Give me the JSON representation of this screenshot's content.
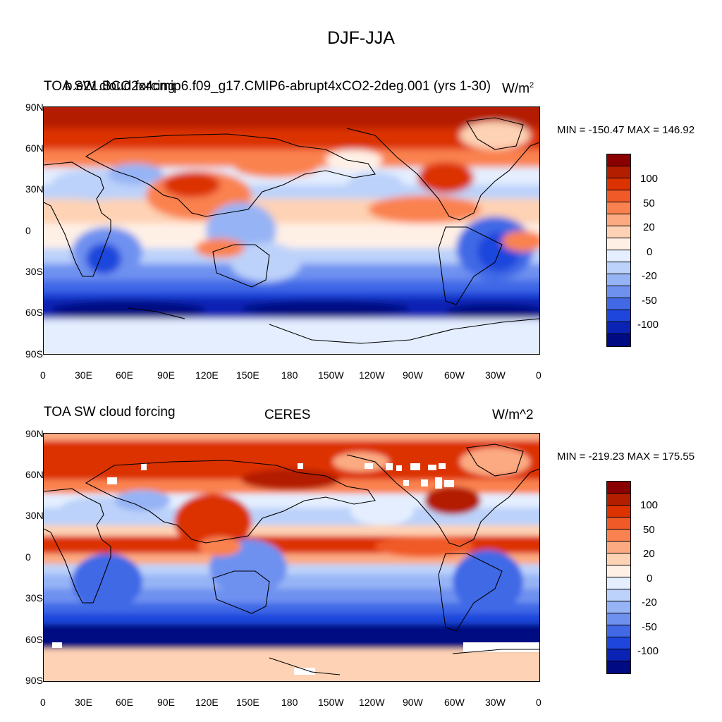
{
  "title": "DJF-JJA",
  "panels": [
    {
      "left_title": "TOA SW cloud forcing",
      "center_title": "b.e21.BCO2x4cmip6.f09_g17.CMIP6-abrupt4xCO2-2deg.001 (yrs 1-30)",
      "units": "W/m",
      "units_sup": "2",
      "min_max": "MIN = -150.47 MAX = 146.92",
      "lat_labels": [
        "90N",
        "60N",
        "30N",
        "0",
        "30S",
        "60S",
        "90S"
      ],
      "lon_labels": [
        "0",
        "30E",
        "60E",
        "90E",
        "120E",
        "150E",
        "180",
        "150W",
        "120W",
        "90W",
        "60W",
        "30W",
        "0"
      ]
    },
    {
      "left_title": "TOA SW cloud forcing",
      "center_title": "CERES",
      "units": "W/m^2",
      "units_sup": "",
      "min_max": "MIN = -219.23 MAX = 175.55",
      "lat_labels": [
        "90N",
        "60N",
        "30N",
        "0",
        "30S",
        "60S",
        "90S"
      ],
      "lon_labels": [
        "0",
        "30E",
        "60E",
        "90E",
        "120E",
        "150E",
        "180",
        "150W",
        "120W",
        "90W",
        "60W",
        "30W",
        "0"
      ]
    }
  ],
  "colorbar": {
    "colors": [
      "#8a0000",
      "#b41e00",
      "#dc3200",
      "#f05a28",
      "#fa8250",
      "#fcaa82",
      "#fed2b4",
      "#fff0e6",
      "#e4eeff",
      "#bcd2fa",
      "#96b4f5",
      "#6e91f0",
      "#4169e6",
      "#1e46dc",
      "#0a23b4",
      "#000a82"
    ],
    "labels": [
      "100",
      "50",
      "20",
      "0",
      "-20",
      "-50",
      "-100"
    ]
  }
}
